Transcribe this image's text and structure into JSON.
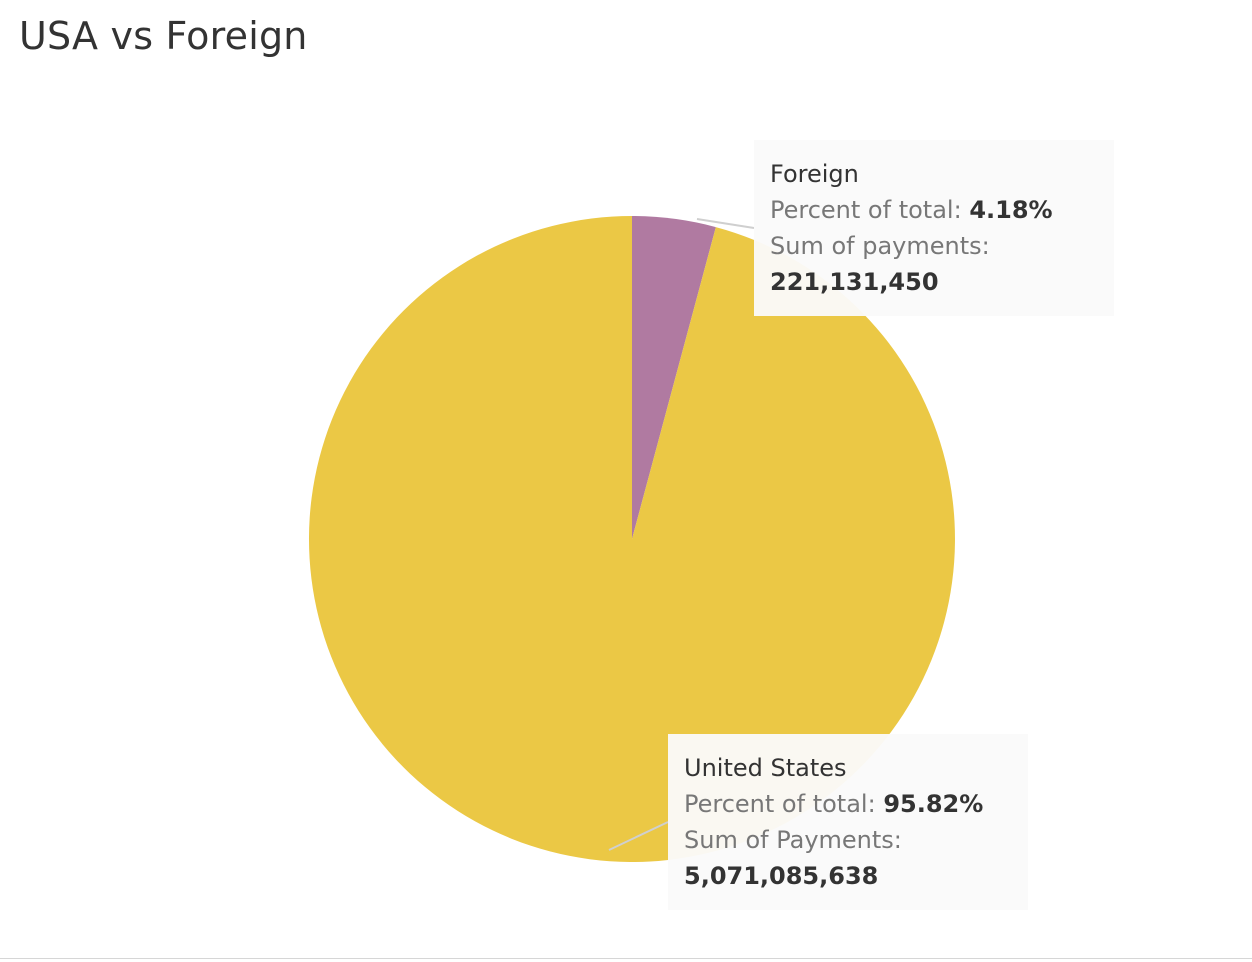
{
  "title": "USA vs Foreign",
  "colors": {
    "foreign": "#B07AA1",
    "united_states": "#EBC845",
    "leader": "#cfcfcf"
  },
  "chart_data": {
    "type": "pie",
    "title": "USA vs Foreign",
    "slices": [
      {
        "label": "Foreign",
        "percent": 4.18,
        "value": 221131450,
        "percent_label": "Percent of total:",
        "percent_text": "4.18%",
        "value_label": "Sum of payments:",
        "value_text": "221,131,450",
        "color": "#B07AA1"
      },
      {
        "label": "United States",
        "percent": 95.82,
        "value": 5071085638,
        "percent_label": "Percent of total:",
        "percent_text": "95.82%",
        "value_label": "Sum of Payments:",
        "value_text": "5,071,085,638",
        "color": "#EBC845"
      }
    ]
  }
}
